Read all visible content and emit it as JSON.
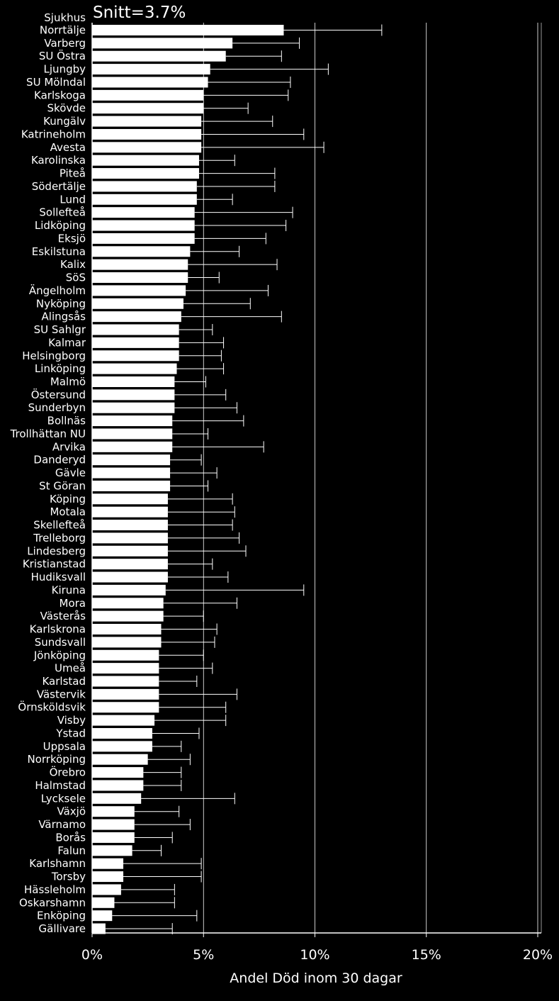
{
  "chart_data": {
    "type": "bar",
    "orientation": "horizontal",
    "title": "",
    "category_header": "Sjukhus",
    "annotation": "Snitt=3.7%",
    "average": 3.7,
    "xlabel": "Andel Död inom 30 dagar",
    "ylabel": "",
    "xlim": [
      0,
      20
    ],
    "xticks": [
      0,
      5,
      10,
      15,
      20
    ],
    "xtick_labels": [
      "0%",
      "5%",
      "10%",
      "15%",
      "20%"
    ],
    "grid": true,
    "legend": "none",
    "colors": {
      "background": "#000000",
      "bar": "#ffffff",
      "foreground": "#ffffff"
    },
    "categories": [
      "Norrtälje",
      "Varberg",
      "SU Östra",
      "Ljungby",
      "SU Mölndal",
      "Karlskoga",
      "Skövde",
      "Kungälv",
      "Katrineholm",
      "Avesta",
      "Karolinska",
      "Piteå",
      "Södertälje",
      "Lund",
      "Sollefteå",
      "Lidköping",
      "Eksjö",
      "Eskilstuna",
      "Kalix",
      "SöS",
      "Ängelholm",
      "Nyköping",
      "Alingsås",
      "SU Sahlgr",
      "Kalmar",
      "Helsingborg",
      "Linköping",
      "Malmö",
      "Östersund",
      "Sunderbyn",
      "Bollnäs",
      "Trollhättan NU",
      "Arvika",
      "Danderyd",
      "Gävle",
      "St Göran",
      "Köping",
      "Motala",
      "Skellefteå",
      "Trelleborg",
      "Lindesberg",
      "Kristianstad",
      "Hudiksvall",
      "Kiruna",
      "Mora",
      "Västerås",
      "Karlskrona",
      "Sundsvall",
      "Jönköping",
      "Umeå",
      "Karlstad",
      "Västervik",
      "Örnsköldsvik",
      "Visby",
      "Ystad",
      "Uppsala",
      "Norrköping",
      "Örebro",
      "Halmstad",
      "Lycksele",
      "Växjö",
      "Värnamo",
      "Borås",
      "Falun",
      "Karlshamn",
      "Torsby",
      "Hässleholm",
      "Oskarshamn",
      "Enköping",
      "Gällivare"
    ],
    "values": [
      8.6,
      6.3,
      6.0,
      5.3,
      5.2,
      5.0,
      5.0,
      4.9,
      4.9,
      4.9,
      4.8,
      4.8,
      4.7,
      4.7,
      4.6,
      4.6,
      4.6,
      4.4,
      4.3,
      4.3,
      4.2,
      4.1,
      4.0,
      3.9,
      3.9,
      3.9,
      3.8,
      3.7,
      3.7,
      3.7,
      3.6,
      3.6,
      3.6,
      3.5,
      3.5,
      3.5,
      3.4,
      3.4,
      3.4,
      3.4,
      3.4,
      3.4,
      3.4,
      3.3,
      3.2,
      3.2,
      3.1,
      3.1,
      3.0,
      3.0,
      3.0,
      3.0,
      3.0,
      2.8,
      2.7,
      2.7,
      2.5,
      2.3,
      2.3,
      2.2,
      1.9,
      1.9,
      1.9,
      1.8,
      1.4,
      1.4,
      1.3,
      1.0,
      0.9,
      0.6
    ],
    "error_high": [
      13.0,
      9.3,
      8.5,
      10.6,
      8.9,
      8.8,
      7.0,
      8.1,
      9.5,
      10.4,
      6.4,
      8.2,
      8.2,
      6.3,
      9.0,
      8.7,
      7.8,
      6.6,
      8.3,
      5.7,
      7.9,
      7.1,
      8.5,
      5.4,
      5.9,
      5.8,
      5.9,
      5.1,
      6.0,
      6.5,
      6.8,
      5.2,
      7.7,
      4.9,
      5.6,
      5.2,
      6.3,
      6.4,
      6.3,
      6.6,
      6.9,
      5.4,
      6.1,
      9.5,
      6.5,
      5.0,
      5.6,
      5.5,
      5.0,
      5.4,
      4.7,
      6.5,
      6.0,
      6.0,
      4.8,
      4.0,
      4.4,
      4.0,
      4.0,
      6.4,
      3.9,
      4.4,
      3.6,
      3.1,
      4.9,
      4.9,
      3.7,
      3.7,
      4.7,
      3.6
    ]
  }
}
